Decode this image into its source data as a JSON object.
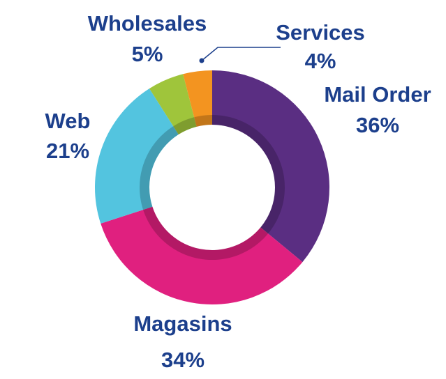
{
  "chart_data": {
    "type": "pie",
    "donut": true,
    "categories": [
      "Mail Order",
      "Magasins",
      "Web",
      "Wholesales",
      "Services"
    ],
    "values": [
      36,
      34,
      21,
      5,
      4
    ],
    "value_labels": [
      "36%",
      "34%",
      "21%",
      "5%",
      "4%"
    ],
    "colors": [
      "#5a2e82",
      "#e0207f",
      "#53c4df",
      "#9fc53b",
      "#f39420"
    ],
    "label_color": "#1c3f8c"
  }
}
